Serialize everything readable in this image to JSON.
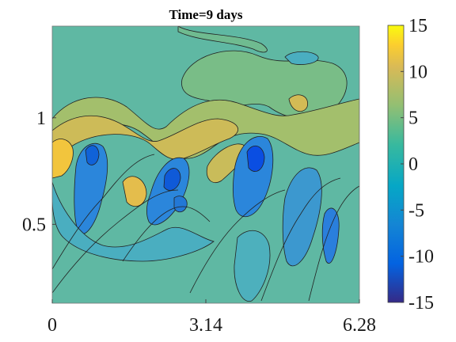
{
  "chart_data": {
    "type": "heatmap",
    "title": "Time=9 days",
    "xlabel": "",
    "ylabel": "",
    "x_ticks": [
      {
        "value": 0,
        "label": "0"
      },
      {
        "value": 3.14,
        "label": "3.14"
      },
      {
        "value": 6.28,
        "label": "6.28"
      }
    ],
    "y_ticks": [
      {
        "value": 0.5,
        "label": "0.5"
      },
      {
        "value": 1,
        "label": "1"
      }
    ],
    "xlim": [
      0,
      6.28
    ],
    "ylim": [
      0.13,
      1.43
    ],
    "colorbar": {
      "ticks": [
        15,
        10,
        5,
        0,
        -5,
        -10,
        -15
      ],
      "range": [
        -15,
        15
      ],
      "colormap": "parula"
    },
    "grid": false,
    "plot_style": "filled contour with black contour lines"
  },
  "colors": {
    "background": "#5fb8a3",
    "low": "#352a87",
    "high": "#f9fb0e"
  }
}
